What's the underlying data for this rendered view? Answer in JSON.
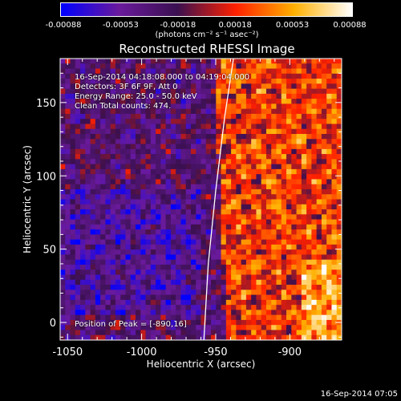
{
  "colorbar": {
    "ticks": [
      "-0.00088",
      "-0.00053",
      "-0.00018",
      "0.00018",
      "0.00053",
      "0.00088"
    ],
    "unit_label": "(photons cm⁻² s⁻¹ asec⁻²)"
  },
  "chart_data": {
    "type": "heatmap",
    "title": "Reconstructed RHESSI Image",
    "xlabel": "Heliocentric X (arcsec)",
    "ylabel": "Heliocentric Y (arcsec)",
    "xlim": [
      -1055,
      -865
    ],
    "ylim": [
      -12,
      180
    ],
    "x_ticks": [
      -1050,
      -1000,
      -950,
      -900
    ],
    "x_tick_labels": [
      "-1050",
      "-1000",
      "-950",
      "-900"
    ],
    "y_ticks": [
      0,
      50,
      100,
      150
    ],
    "y_tick_labels": [
      "0",
      "50",
      "100",
      "150"
    ],
    "value_range": [
      -0.00088,
      0.00088
    ],
    "colormap": [
      "#0000ff",
      "#6a1a9c",
      "#3a1050",
      "#ff2000",
      "#ffb000",
      "#ffffff"
    ],
    "limb_x_at_y": [
      [
        -958,
        -12
      ],
      [
        -955,
        40
      ],
      [
        -950,
        90
      ],
      [
        -944,
        140
      ],
      [
        -938,
        180
      ]
    ],
    "peak_position": [
      -890,
      16
    ]
  },
  "annotations": {
    "time_range": "16-Sep-2014 04:18:08.000 to 04:19:04.000",
    "detectors": "Detectors: 3F 6F 9F, Att 0",
    "energy": "Energy Range: 25.0 - 50.0 keV",
    "clean": "Clean    Total counts: 474.",
    "peak": "Position of Peak = [-890,16]"
  },
  "footer": "16-Sep-2014 07:05"
}
